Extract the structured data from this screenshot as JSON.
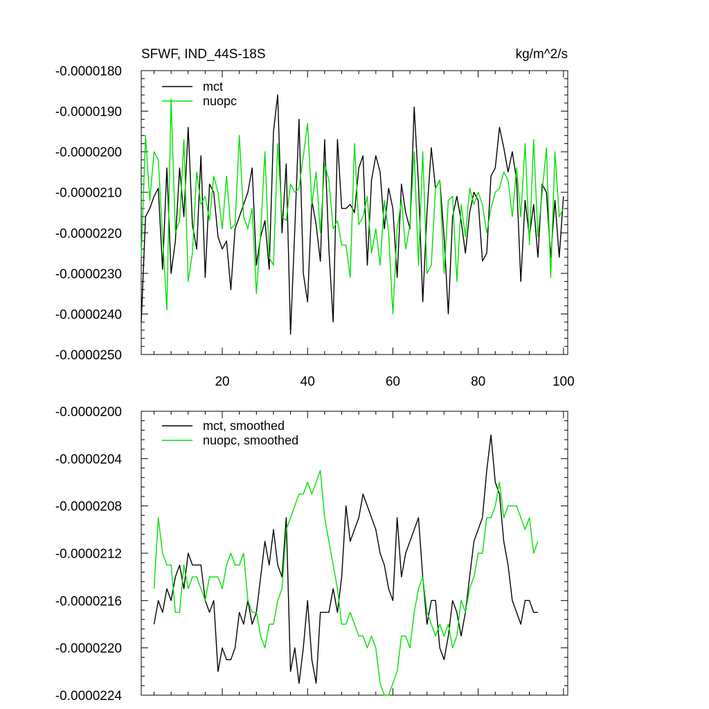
{
  "page": {
    "title": "SFWF, IND_44S-18S",
    "units": "kg/m^2/s"
  },
  "chart_data": [
    {
      "type": "line",
      "title": "SFWF, IND_44S-18S",
      "units_label": "kg/m^2/s",
      "xlabel": "",
      "ylabel": "",
      "xlim": [
        1,
        101
      ],
      "ylim": [
        -2.5e-05,
        -1.8e-05
      ],
      "x_ticks": [
        20,
        40,
        60,
        80,
        100
      ],
      "x_tick_labels": [
        "20",
        "40",
        "60",
        "80",
        "100"
      ],
      "y_ticks": [
        -1.8e-05,
        -1.9e-05,
        -2e-05,
        -2.1e-05,
        -2.2e-05,
        -2.3e-05,
        -2.4e-05,
        -2.5e-05
      ],
      "y_tick_labels": [
        "-0.0000180",
        "-0.0000190",
        "-0.0000200",
        "-0.0000210",
        "-0.0000220",
        "-0.0000230",
        "-0.0000240",
        "-0.0000250"
      ],
      "legend": [
        "mct",
        "nuopc"
      ],
      "legend_position": "top-left",
      "series": [
        {
          "name": "mct",
          "color": "#000000",
          "x_start": 1,
          "values": [
            -2.42e-05,
            -2.16e-05,
            -2.14e-05,
            -2.11e-05,
            -2.09e-05,
            -2.29e-05,
            -2.04e-05,
            -2.3e-05,
            -2.22e-05,
            -2.04e-05,
            -2.16e-05,
            -1.94e-05,
            -2.18e-05,
            -2.24e-05,
            -2.01e-05,
            -2.31e-05,
            -2.08e-05,
            -2.1e-05,
            -2.21e-05,
            -2.24e-05,
            -2.22e-05,
            -2.34e-05,
            -2.19e-05,
            -2.16e-05,
            -2.13e-05,
            -2.1e-05,
            -2.04e-05,
            -2.28e-05,
            -2.21e-05,
            -2.17e-05,
            -2.29e-05,
            -1.95e-05,
            -1.86e-05,
            -2.2e-05,
            -2.03e-05,
            -2.45e-05,
            -2.19e-05,
            -1.92e-05,
            -2.3e-05,
            -2.37e-05,
            -2.12e-05,
            -2.18e-05,
            -2.27e-05,
            -1.97e-05,
            -2.24e-05,
            -2.42e-05,
            -1.97e-05,
            -2.14e-05,
            -2.14e-05,
            -2.13e-05,
            -2.15e-05,
            -2.04e-05,
            -2.01e-05,
            -2.28e-05,
            -2.07e-05,
            -2.01e-05,
            -2.05e-05,
            -2.19e-05,
            -2.09e-05,
            -2.14e-05,
            -2.31e-05,
            -2.08e-05,
            -2.15e-05,
            -2.19e-05,
            -1.89e-05,
            -2.08e-05,
            -2.37e-05,
            -2.15e-05,
            -1.99e-05,
            -2.09e-05,
            -2.07e-05,
            -2.21e-05,
            -2.4e-05,
            -2.16e-05,
            -2.11e-05,
            -2.17e-05,
            -2.25e-05,
            -2.15e-05,
            -2.1e-05,
            -2.12e-05,
            -2.27e-05,
            -2.25e-05,
            -2.06e-05,
            -2.04e-05,
            -1.94e-05,
            -1.99e-05,
            -2.05e-05,
            -2e-05,
            -2.07e-05,
            -2.32e-05,
            -2.12e-05,
            -2.21e-05,
            -2.13e-05,
            -2.26e-05,
            -2.08e-05,
            -2.1e-05,
            -2.26e-05,
            -2.12e-05,
            -2.26e-05,
            -2.11e-05
          ]
        },
        {
          "name": "nuopc",
          "color": "#00e000",
          "x_start": 1,
          "values": [
            -2.26e-05,
            -1.96e-05,
            -2.12e-05,
            -2e-05,
            -2.02e-05,
            -2.21e-05,
            -2.39e-05,
            -1.87e-05,
            -2.2e-05,
            -2.17e-05,
            -1.97e-05,
            -2.32e-05,
            -2.25e-05,
            -2.05e-05,
            -2.13e-05,
            -2.11e-05,
            -2.17e-05,
            -2.06e-05,
            -2.1e-05,
            -2.19e-05,
            -2.06e-05,
            -2.19e-05,
            -2.18e-05,
            -1.96e-05,
            -2.16e-05,
            -2.19e-05,
            -2.14e-05,
            -2.35e-05,
            -2.2e-05,
            -2e-05,
            -2.26e-05,
            -2.28e-05,
            -1.98e-05,
            -2.16e-05,
            -2.17e-05,
            -2.08e-05,
            -2.1e-05,
            -2.09e-05,
            -2.01e-05,
            -1.93e-05,
            -2.13e-05,
            -2.05e-05,
            -2.2e-05,
            -2.03e-05,
            -2.07e-05,
            -2.19e-05,
            -2.17e-05,
            -2.23e-05,
            -2.23e-05,
            -2.31e-05,
            -1.98e-05,
            -2.18e-05,
            -2.16e-05,
            -2.11e-05,
            -2.25e-05,
            -2.19e-05,
            -2.28e-05,
            -2.12e-05,
            -2.2e-05,
            -2.4e-05,
            -2.19e-05,
            -2.12e-05,
            -2.24e-05,
            -2.18e-05,
            -2e-05,
            -2.28e-05,
            -2e-05,
            -2.3e-05,
            -2.28e-05,
            -2.09e-05,
            -2.07e-05,
            -2.3e-05,
            -2.12e-05,
            -2.11e-05,
            -2.32e-05,
            -2.13e-05,
            -2.21e-05,
            -2.09e-05,
            -2.13e-05,
            -2.1e-05,
            -2.13e-05,
            -2.2e-05,
            -2.14e-05,
            -2.1e-05,
            -2.09e-05,
            -2.05e-05,
            -2.07e-05,
            -2.16e-05,
            -2.04e-05,
            -2.16e-05,
            -1.98e-05,
            -2.23e-05,
            -1.97e-05,
            -2.21e-05,
            -2.1e-05,
            -1.99e-05,
            -2.31e-05,
            -2e-05,
            -2.16e-05,
            -2.14e-05
          ]
        }
      ]
    },
    {
      "type": "line",
      "title": "",
      "xlabel": "",
      "ylabel": "",
      "xlim": [
        1,
        101
      ],
      "ylim": [
        -2.24e-05,
        -2e-05
      ],
      "x_ticks": [
        20,
        40,
        60,
        80,
        100
      ],
      "x_tick_labels": [],
      "y_ticks": [
        -2e-05,
        -2.04e-05,
        -2.08e-05,
        -2.12e-05,
        -2.16e-05,
        -2.2e-05,
        -2.24e-05
      ],
      "y_tick_labels": [
        "-0.0000200",
        "-0.0000204",
        "-0.0000208",
        "-0.0000212",
        "-0.0000216",
        "-0.0000220",
        "-0.0000224"
      ],
      "legend": [
        "mct, smoothed",
        "nuopc, smoothed"
      ],
      "legend_position": "top-left",
      "series": [
        {
          "name": "mct, smoothed",
          "color": "#000000",
          "x_start": 4,
          "values": [
            -2.18e-05,
            -2.16e-05,
            -2.17e-05,
            -2.15e-05,
            -2.16e-05,
            -2.14e-05,
            -2.13e-05,
            -2.15e-05,
            -2.12e-05,
            -2.13e-05,
            -2.13e-05,
            -2.13e-05,
            -2.16e-05,
            -2.17e-05,
            -2.16e-05,
            -2.22e-05,
            -2.2e-05,
            -2.21e-05,
            -2.21e-05,
            -2.2e-05,
            -2.17e-05,
            -2.18e-05,
            -2.16e-05,
            -2.18e-05,
            -2.17e-05,
            -2.14e-05,
            -2.11e-05,
            -2.13e-05,
            -2.1e-05,
            -2.13e-05,
            -2.14e-05,
            -2.09e-05,
            -2.22e-05,
            -2.2e-05,
            -2.23e-05,
            -2.2e-05,
            -2.16e-05,
            -2.21e-05,
            -2.23e-05,
            -2.17e-05,
            -2.17e-05,
            -2.17e-05,
            -2.15e-05,
            -2.17e-05,
            -2.14e-05,
            -2.08e-05,
            -2.11e-05,
            -2.1e-05,
            -2.09e-05,
            -2.07e-05,
            -2.08e-05,
            -2.09e-05,
            -2.1e-05,
            -2.12e-05,
            -2.13e-05,
            -2.15e-05,
            -2.16e-05,
            -2.09e-05,
            -2.14e-05,
            -2.12e-05,
            -2.11e-05,
            -2.1e-05,
            -2.09e-05,
            -2.14e-05,
            -2.18e-05,
            -2.16e-05,
            -2.16e-05,
            -2.2e-05,
            -2.21e-05,
            -2.19e-05,
            -2.16e-05,
            -2.17e-05,
            -2.19e-05,
            -2.17e-05,
            -2.14e-05,
            -2.11e-05,
            -2.1e-05,
            -2.09e-05,
            -2.05e-05,
            -2.02e-05,
            -2.06e-05,
            -2.07e-05,
            -2.11e-05,
            -2.13e-05,
            -2.16e-05,
            -2.17e-05,
            -2.18e-05,
            -2.16e-05,
            -2.16e-05,
            -2.17e-05,
            -2.17e-05
          ]
        },
        {
          "name": "nuopc, smoothed",
          "color": "#00e000",
          "x_start": 4,
          "values": [
            -2.15e-05,
            -2.09e-05,
            -2.12e-05,
            -2.13e-05,
            -2.13e-05,
            -2.17e-05,
            -2.17e-05,
            -2.13e-05,
            -2.15e-05,
            -2.14e-05,
            -2.14e-05,
            -2.15e-05,
            -2.16e-05,
            -2.14e-05,
            -2.14e-05,
            -2.14e-05,
            -2.15e-05,
            -2.13e-05,
            -2.12e-05,
            -2.13e-05,
            -2.13e-05,
            -2.12e-05,
            -2.16e-05,
            -2.17e-05,
            -2.17e-05,
            -2.19e-05,
            -2.2e-05,
            -2.18e-05,
            -2.18e-05,
            -2.16e-05,
            -2.15e-05,
            -2.1e-05,
            -2.09e-05,
            -2.08e-05,
            -2.07e-05,
            -2.07e-05,
            -2.06e-05,
            -2.07e-05,
            -2.06e-05,
            -2.05e-05,
            -2.09e-05,
            -2.11e-05,
            -2.13e-05,
            -2.15e-05,
            -2.18e-05,
            -2.18e-05,
            -2.17e-05,
            -2.18e-05,
            -2.19e-05,
            -2.19e-05,
            -2.2e-05,
            -2.19e-05,
            -2.2e-05,
            -2.23e-05,
            -2.24e-05,
            -2.24e-05,
            -2.23e-05,
            -2.22e-05,
            -2.19e-05,
            -2.19e-05,
            -2.2e-05,
            -2.17e-05,
            -2.15e-05,
            -2.14e-05,
            -2.17e-05,
            -2.18e-05,
            -2.19e-05,
            -2.18e-05,
            -2.19e-05,
            -2.18e-05,
            -2.2e-05,
            -2.19e-05,
            -2.16e-05,
            -2.17e-05,
            -2.15e-05,
            -2.14e-05,
            -2.12e-05,
            -2.12e-05,
            -2.09e-05,
            -2.09e-05,
            -2.08e-05,
            -2.06e-05,
            -2.09e-05,
            -2.08e-05,
            -2.08e-05,
            -2.08e-05,
            -2.09e-05,
            -2.1e-05,
            -2.09e-05,
            -2.12e-05,
            -2.11e-05
          ]
        }
      ]
    }
  ]
}
